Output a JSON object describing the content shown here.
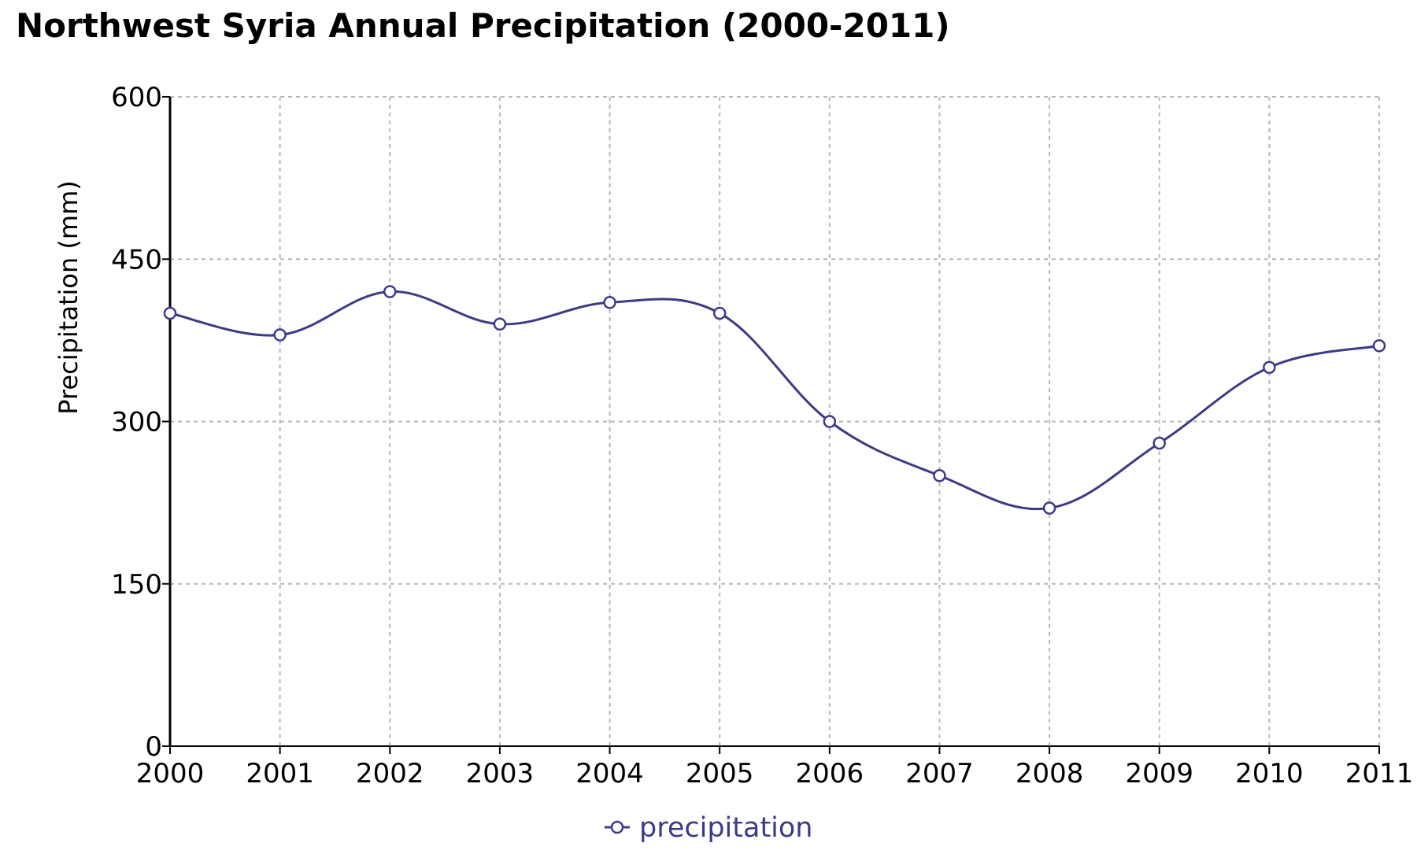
{
  "chart_data": {
    "type": "line",
    "title": "Northwest Syria Annual Precipitation (2000-2011)",
    "xlabel": "",
    "ylabel": "Precipitation (mm)",
    "categories": [
      "2000",
      "2001",
      "2002",
      "2003",
      "2004",
      "2005",
      "2006",
      "2007",
      "2008",
      "2009",
      "2010",
      "2011"
    ],
    "series": [
      {
        "name": "precipitation",
        "values": [
          400,
          380,
          420,
          390,
          410,
          400,
          300,
          250,
          220,
          280,
          350,
          370
        ],
        "color": "#3d3a86"
      }
    ],
    "ylim": [
      0,
      600
    ],
    "yticks": [
      0,
      150,
      300,
      450,
      600
    ],
    "grid": true,
    "legend_position": "bottom-center"
  }
}
